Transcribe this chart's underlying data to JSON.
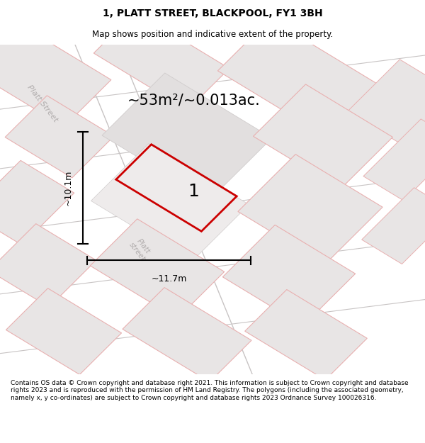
{
  "title": "1, PLATT STREET, BLACKPOOL, FY1 3BH",
  "subtitle": "Map shows position and indicative extent of the property.",
  "area_text": "~53m²/~0.013ac.",
  "dim_width": "~11.7m",
  "dim_height": "~10.1m",
  "label": "1",
  "footer": "Contains OS data © Crown copyright and database right 2021. This information is subject to Crown copyright and database rights 2023 and is reproduced with the permission of HM Land Registry. The polygons (including the associated geometry, namely x, y co-ordinates) are subject to Crown copyright and database rights 2023 Ordnance Survey 100026316.",
  "bg_color": "#f2f0f0",
  "block_fill": "#e8e5e5",
  "block_edge_pink": "#e8b0b0",
  "block_edge_gray": "#d0cccc",
  "red_edge": "#cc0000",
  "street_label_color": "#b0acac",
  "title_fontsize": 10,
  "subtitle_fontsize": 8.5,
  "area_fontsize": 15,
  "label_fontsize": 18,
  "dim_fontsize": 9,
  "footer_fontsize": 6.5
}
